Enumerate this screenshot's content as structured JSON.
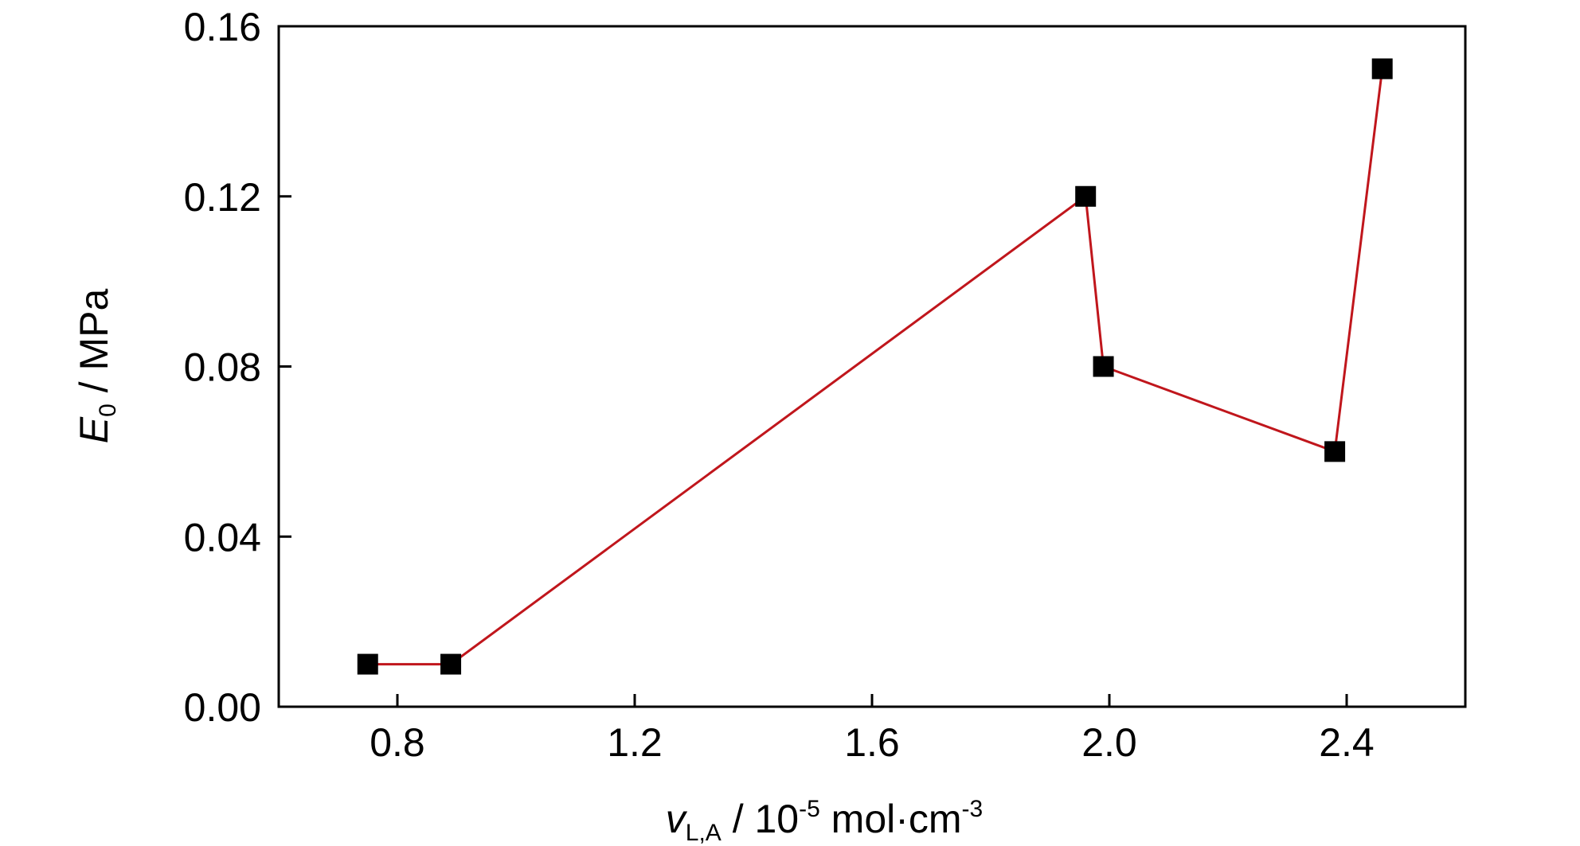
{
  "chart_data": {
    "type": "line",
    "xlabel": {
      "var": "v",
      "sub": "L,A",
      "mid": " / 10",
      "sup1": "-5",
      "unit": " mol·cm",
      "sup2": "-3"
    },
    "ylabel": {
      "var": "E",
      "sub": "0",
      "unit": " / MPa"
    },
    "xlim": [
      0.6,
      2.6
    ],
    "ylim": [
      0.0,
      0.16
    ],
    "xticks": [
      0.8,
      1.2,
      1.6,
      2.0,
      2.4
    ],
    "xtick_labels": [
      "0.8",
      "1.2",
      "1.6",
      "2.0",
      "2.4"
    ],
    "yticks": [
      0.0,
      0.04,
      0.08,
      0.12,
      0.16
    ],
    "ytick_labels": [
      "0.00",
      "0.04",
      "0.08",
      "0.12",
      "0.16"
    ],
    "grid": false,
    "series": [
      {
        "x": [
          0.75,
          0.89,
          1.96,
          1.99,
          2.38,
          2.46
        ],
        "y": [
          0.01,
          0.01,
          0.12,
          0.08,
          0.06,
          0.15
        ],
        "line_color": "#c0161c",
        "marker": "square",
        "marker_color": "#000000"
      }
    ]
  }
}
